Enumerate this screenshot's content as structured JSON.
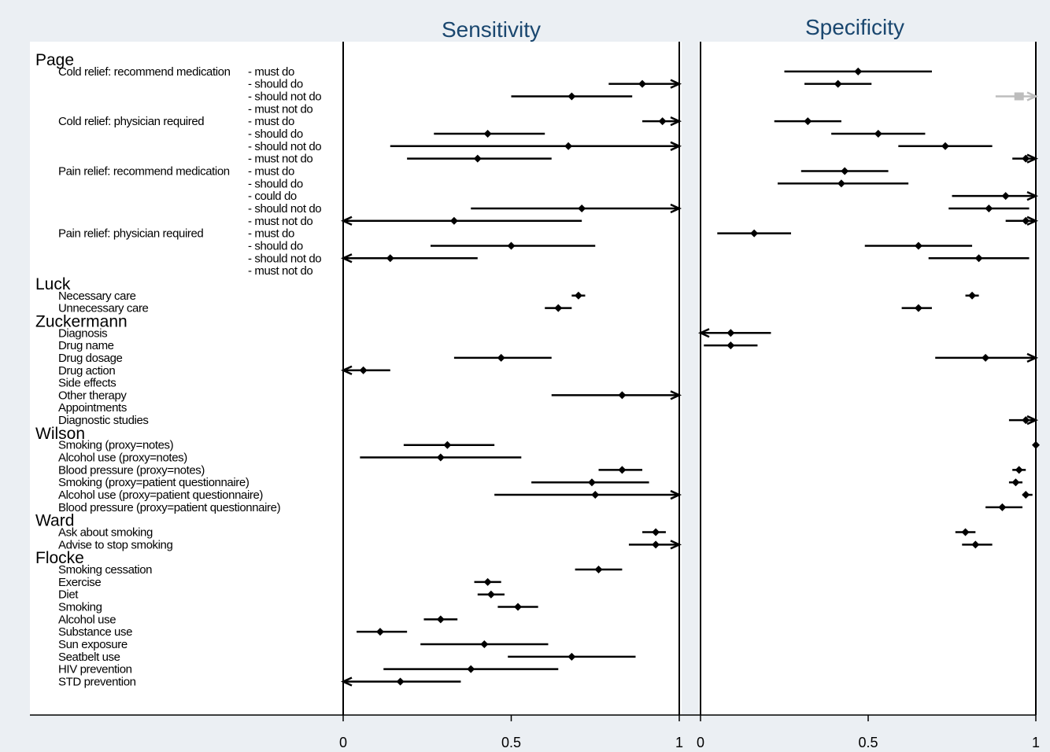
{
  "chart_data": {
    "type": "forest",
    "panels": [
      {
        "title": "Sensitivity",
        "xlim": [
          0,
          1
        ],
        "ticks": [
          "0",
          "0.5",
          "1"
        ]
      },
      {
        "title": "Specificity",
        "xlim": [
          0,
          1
        ],
        "ticks": [
          "0",
          "0.5",
          "1"
        ]
      }
    ],
    "rows": [
      {
        "kind": "group",
        "label": "Page"
      },
      {
        "kind": "item",
        "label": "Cold relief: recommend medication",
        "sub": "- must do",
        "sens": null,
        "spec": {
          "est": 0.47,
          "lo": 0.25,
          "hi": 0.69
        }
      },
      {
        "kind": "item",
        "label": "",
        "sub": "- should do",
        "sens": {
          "est": 0.89,
          "lo": 0.79,
          "hi": 1.0,
          "arrow_hi": true
        },
        "spec": {
          "est": 0.41,
          "lo": 0.31,
          "hi": 0.51
        }
      },
      {
        "kind": "item",
        "label": "",
        "sub": "- should not do",
        "sens": {
          "est": 0.68,
          "lo": 0.5,
          "hi": 0.86
        },
        "spec": {
          "est": 0.95,
          "lo": 0.88,
          "hi": 1.0,
          "arrow_hi": true,
          "grey": true
        }
      },
      {
        "kind": "item",
        "label": "",
        "sub": "- must not do",
        "sens": null,
        "spec": null
      },
      {
        "kind": "item",
        "label": "Cold relief: physician required",
        "sub": "- must do",
        "sens": {
          "est": 0.95,
          "lo": 0.89,
          "hi": 1.0,
          "arrow_hi": true
        },
        "spec": {
          "est": 0.32,
          "lo": 0.22,
          "hi": 0.42
        }
      },
      {
        "kind": "item",
        "label": "",
        "sub": "- should do",
        "sens": {
          "est": 0.43,
          "lo": 0.27,
          "hi": 0.6
        },
        "spec": {
          "est": 0.53,
          "lo": 0.39,
          "hi": 0.67
        }
      },
      {
        "kind": "item",
        "label": "",
        "sub": "- should not do",
        "sens": {
          "est": 0.67,
          "lo": 0.14,
          "hi": 1.0,
          "arrow_hi": true
        },
        "spec": {
          "est": 0.73,
          "lo": 0.59,
          "hi": 0.87
        }
      },
      {
        "kind": "item",
        "label": "",
        "sub": "- must not do",
        "sens": {
          "est": 0.4,
          "lo": 0.19,
          "hi": 0.62
        },
        "spec": {
          "est": 0.97,
          "lo": 0.93,
          "hi": 1.0,
          "arrow_hi": true
        }
      },
      {
        "kind": "item",
        "label": "Pain relief: recommend medication",
        "sub": "- must do",
        "sens": null,
        "spec": {
          "est": 0.43,
          "lo": 0.3,
          "hi": 0.56
        }
      },
      {
        "kind": "item",
        "label": "",
        "sub": "- should do",
        "sens": null,
        "spec": {
          "est": 0.42,
          "lo": 0.23,
          "hi": 0.62
        }
      },
      {
        "kind": "item",
        "label": "",
        "sub": "- could do",
        "sens": null,
        "spec": {
          "est": 0.91,
          "lo": 0.75,
          "hi": 1.0,
          "arrow_hi": true
        }
      },
      {
        "kind": "item",
        "label": "",
        "sub": "- should not do",
        "sens": {
          "est": 0.71,
          "lo": 0.38,
          "hi": 1.0,
          "arrow_hi": true
        },
        "spec": {
          "est": 0.86,
          "lo": 0.74,
          "hi": 0.98
        }
      },
      {
        "kind": "item",
        "label": "",
        "sub": "- must not do",
        "sens": {
          "est": 0.33,
          "lo": 0.0,
          "hi": 0.71,
          "arrow_lo": true
        },
        "spec": {
          "est": 0.97,
          "lo": 0.91,
          "hi": 1.0,
          "arrow_hi": true
        }
      },
      {
        "kind": "item",
        "label": "Pain relief: physician required",
        "sub": "- must do",
        "sens": null,
        "spec": {
          "est": 0.16,
          "lo": 0.05,
          "hi": 0.27
        }
      },
      {
        "kind": "item",
        "label": "",
        "sub": "- should do",
        "sens": {
          "est": 0.5,
          "lo": 0.26,
          "hi": 0.75
        },
        "spec": {
          "est": 0.65,
          "lo": 0.49,
          "hi": 0.81
        }
      },
      {
        "kind": "item",
        "label": "",
        "sub": "- should not do",
        "sens": {
          "est": 0.14,
          "lo": 0.0,
          "hi": 0.4,
          "arrow_lo": true
        },
        "spec": {
          "est": 0.83,
          "lo": 0.68,
          "hi": 0.98
        }
      },
      {
        "kind": "item",
        "label": "",
        "sub": "- must not do",
        "sens": null,
        "spec": null
      },
      {
        "kind": "group",
        "label": "Luck"
      },
      {
        "kind": "item",
        "label": "Necessary care",
        "sub": "",
        "sens": {
          "est": 0.7,
          "lo": 0.68,
          "hi": 0.72
        },
        "spec": {
          "est": 0.81,
          "lo": 0.79,
          "hi": 0.83
        }
      },
      {
        "kind": "item",
        "label": "Unnecessary care",
        "sub": "",
        "sens": {
          "est": 0.64,
          "lo": 0.6,
          "hi": 0.68
        },
        "spec": {
          "est": 0.65,
          "lo": 0.6,
          "hi": 0.69
        }
      },
      {
        "kind": "group",
        "label": "Zuckermann"
      },
      {
        "kind": "item",
        "label": "Diagnosis",
        "sub": "",
        "sens": null,
        "spec": {
          "est": 0.09,
          "lo": 0.0,
          "hi": 0.21,
          "arrow_lo": true
        }
      },
      {
        "kind": "item",
        "label": "Drug name",
        "sub": "",
        "sens": null,
        "spec": {
          "est": 0.09,
          "lo": 0.01,
          "hi": 0.17
        }
      },
      {
        "kind": "item",
        "label": "Drug dosage",
        "sub": "",
        "sens": {
          "est": 0.47,
          "lo": 0.33,
          "hi": 0.62
        },
        "spec": {
          "est": 0.85,
          "lo": 0.7,
          "hi": 1.0,
          "arrow_hi": true
        }
      },
      {
        "kind": "item",
        "label": "Drug action",
        "sub": "",
        "sens": {
          "est": 0.06,
          "lo": 0.0,
          "hi": 0.14,
          "arrow_lo": true
        },
        "spec": null
      },
      {
        "kind": "item",
        "label": "Side effects",
        "sub": "",
        "sens": null,
        "spec": null
      },
      {
        "kind": "item",
        "label": "Other therapy",
        "sub": "",
        "sens": {
          "est": 0.83,
          "lo": 0.62,
          "hi": 1.0,
          "arrow_hi": true
        },
        "spec": null
      },
      {
        "kind": "item",
        "label": "Appointments",
        "sub": "",
        "sens": null,
        "spec": null
      },
      {
        "kind": "item",
        "label": "Diagnostic studies",
        "sub": "",
        "sens": null,
        "spec": {
          "est": 0.97,
          "lo": 0.92,
          "hi": 1.0,
          "arrow_hi": true
        }
      },
      {
        "kind": "group",
        "label": "Wilson"
      },
      {
        "kind": "item",
        "label": "Smoking (proxy=notes)",
        "sub": "",
        "sens": {
          "est": 0.31,
          "lo": 0.18,
          "hi": 0.45
        },
        "spec": {
          "est": 1.0,
          "lo": 1.0,
          "hi": 1.0
        }
      },
      {
        "kind": "item",
        "label": "Alcohol use  (proxy=notes)",
        "sub": "",
        "sens": {
          "est": 0.29,
          "lo": 0.05,
          "hi": 0.53
        },
        "spec": null
      },
      {
        "kind": "item",
        "label": "Blood pressure  (proxy=notes)",
        "sub": "",
        "sens": {
          "est": 0.83,
          "lo": 0.76,
          "hi": 0.89
        },
        "spec": {
          "est": 0.95,
          "lo": 0.93,
          "hi": 0.97
        }
      },
      {
        "kind": "item",
        "label": "Smoking  (proxy=patient questionnaire)",
        "sub": "",
        "sens": {
          "est": 0.74,
          "lo": 0.56,
          "hi": 0.91
        },
        "spec": {
          "est": 0.94,
          "lo": 0.92,
          "hi": 0.96
        }
      },
      {
        "kind": "item",
        "label": "Alcohol use (proxy=patient questionnaire)",
        "sub": "",
        "sens": {
          "est": 0.75,
          "lo": 0.45,
          "hi": 1.0,
          "arrow_hi": true
        },
        "spec": {
          "est": 0.97,
          "lo": 0.96,
          "hi": 0.99
        }
      },
      {
        "kind": "item",
        "label": "Blood pressure (proxy=patient questionnaire)",
        "sub": "",
        "sens": null,
        "spec": {
          "est": 0.9,
          "lo": 0.85,
          "hi": 0.96
        }
      },
      {
        "kind": "group",
        "label": "Ward"
      },
      {
        "kind": "item",
        "label": "Ask about smoking",
        "sub": "",
        "sens": {
          "est": 0.93,
          "lo": 0.89,
          "hi": 0.96
        },
        "spec": {
          "est": 0.79,
          "lo": 0.76,
          "hi": 0.82
        }
      },
      {
        "kind": "item",
        "label": "Advise to stop smoking",
        "sub": "",
        "sens": {
          "est": 0.93,
          "lo": 0.85,
          "hi": 1.0,
          "arrow_hi": true
        },
        "spec": {
          "est": 0.82,
          "lo": 0.78,
          "hi": 0.87
        }
      },
      {
        "kind": "group",
        "label": "Flocke"
      },
      {
        "kind": "item",
        "label": "Smoking cessation",
        "sub": "",
        "sens": {
          "est": 0.76,
          "lo": 0.69,
          "hi": 0.83
        },
        "spec": null
      },
      {
        "kind": "item",
        "label": "Exercise",
        "sub": "",
        "sens": {
          "est": 0.43,
          "lo": 0.39,
          "hi": 0.47
        },
        "spec": null
      },
      {
        "kind": "item",
        "label": "Diet",
        "sub": "",
        "sens": {
          "est": 0.44,
          "lo": 0.4,
          "hi": 0.48
        },
        "spec": null
      },
      {
        "kind": "item",
        "label": "Smoking",
        "sub": "",
        "sens": {
          "est": 0.52,
          "lo": 0.46,
          "hi": 0.58
        },
        "spec": null
      },
      {
        "kind": "item",
        "label": "Alcohol use",
        "sub": "",
        "sens": {
          "est": 0.29,
          "lo": 0.24,
          "hi": 0.34
        },
        "spec": null
      },
      {
        "kind": "item",
        "label": "Substance use",
        "sub": "",
        "sens": {
          "est": 0.11,
          "lo": 0.04,
          "hi": 0.19
        },
        "spec": null
      },
      {
        "kind": "item",
        "label": "Sun exposure",
        "sub": "",
        "sens": {
          "est": 0.42,
          "lo": 0.23,
          "hi": 0.61
        },
        "spec": null
      },
      {
        "kind": "item",
        "label": "Seatbelt use",
        "sub": "",
        "sens": {
          "est": 0.68,
          "lo": 0.49,
          "hi": 0.87
        },
        "spec": null
      },
      {
        "kind": "item",
        "label": "HIV prevention",
        "sub": "",
        "sens": {
          "est": 0.38,
          "lo": 0.12,
          "hi": 0.64
        },
        "spec": null
      },
      {
        "kind": "item",
        "label": "STD prevention",
        "sub": "",
        "sens": {
          "est": 0.17,
          "lo": 0.0,
          "hi": 0.35,
          "arrow_lo": true
        },
        "spec": null
      }
    ]
  }
}
